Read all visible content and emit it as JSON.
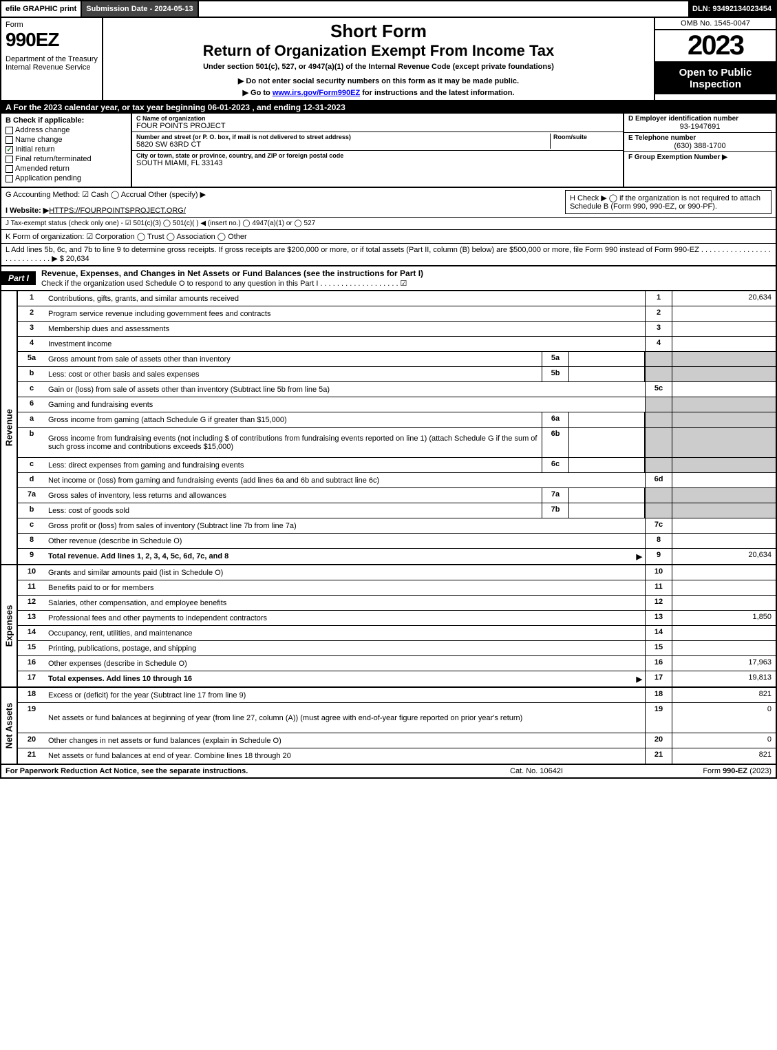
{
  "topbar": {
    "efile": "efile GRAPHIC print",
    "subdate": "Submission Date - 2024-05-13",
    "dln": "DLN: 93492134023454"
  },
  "header": {
    "form_label": "Form",
    "form_num": "990EZ",
    "dept": "Department of the Treasury\nInternal Revenue Service",
    "short": "Short Form",
    "title": "Return of Organization Exempt From Income Tax",
    "sub1": "Under section 501(c), 527, or 4947(a)(1) of the Internal Revenue Code (except private foundations)",
    "sub2": "▶ Do not enter social security numbers on this form as it may be made public.",
    "sub3_pre": "▶ Go to ",
    "sub3_link": "www.irs.gov/Form990EZ",
    "sub3_post": " for instructions and the latest information.",
    "omb": "OMB No. 1545-0047",
    "year": "2023",
    "inspect": "Open to Public Inspection"
  },
  "row_a": "A  For the 2023 calendar year, or tax year beginning 06-01-2023 , and ending 12-31-2023",
  "col_b": {
    "hdr": "B  Check if applicable:",
    "items": [
      "Address change",
      "Name change",
      "Initial return",
      "Final return/terminated",
      "Amended return",
      "Application pending"
    ],
    "checked": 2
  },
  "col_c": {
    "name_lbl": "C Name of organization",
    "name_val": "FOUR POINTS PROJECT",
    "addr_lbl": "Number and street (or P. O. box, if mail is not delivered to street address)",
    "room_lbl": "Room/suite",
    "addr_val": "5820 SW 63RD CT",
    "city_lbl": "City or town, state or province, country, and ZIP or foreign postal code",
    "city_val": "SOUTH MIAMI, FL  33143"
  },
  "col_d": {
    "d_lbl": "D Employer identification number",
    "d_val": "93-1947691",
    "e_lbl": "E Telephone number",
    "e_val": "(630) 388-1700",
    "f_lbl": "F Group Exemption Number  ▶"
  },
  "g": "G Accounting Method:   ☑ Cash  ◯ Accrual  Other (specify) ▶",
  "h": "H  Check ▶  ◯  if the organization is not required to attach Schedule B (Form 990, 990-EZ, or 990-PF).",
  "i_lbl": "I Website: ▶",
  "i_val": "HTTPS://FOURPOINTSPROJECT.ORG/",
  "j": "J Tax-exempt status (check only one) -  ☑ 501(c)(3) ◯ 501(c)(  ) ◀ (insert no.) ◯ 4947(a)(1) or ◯ 527",
  "k": "K Form of organization:   ☑ Corporation  ◯ Trust  ◯ Association  ◯ Other",
  "l": "L Add lines 5b, 6c, and 7b to line 9 to determine gross receipts. If gross receipts are $200,000 or more, or if total assets (Part II, column (B) below) are $500,000 or more, file Form 990 instead of Form 990-EZ  .  .  .  .  .  .  .  .  .  .  .  .  .  .  .  .  .  .  .  .  .  .  .  .  .  .  .  .  ▶ $ 20,634",
  "part1": {
    "badge": "Part I",
    "title": "Revenue, Expenses, and Changes in Net Assets or Fund Balances (see the instructions for Part I)",
    "check": "Check if the organization used Schedule O to respond to any question in this Part I .  .  .  .  .  .  .  .  .  .  .  .  .  .  .  .  .  .  .    ☑"
  },
  "revenue_label": "Revenue",
  "expenses_label": "Expenses",
  "netassets_label": "Net Assets",
  "lines": {
    "rev": [
      {
        "n": "1",
        "d": "Contributions, gifts, grants, and similar amounts received",
        "rn": "1",
        "rv": "20,634"
      },
      {
        "n": "2",
        "d": "Program service revenue including government fees and contracts",
        "rn": "2",
        "rv": ""
      },
      {
        "n": "3",
        "d": "Membership dues and assessments",
        "rn": "3",
        "rv": ""
      },
      {
        "n": "4",
        "d": "Investment income",
        "rn": "4",
        "rv": ""
      },
      {
        "n": "5a",
        "d": "Gross amount from sale of assets other than inventory",
        "mn": "5a",
        "shade": true
      },
      {
        "n": "b",
        "d": "Less: cost or other basis and sales expenses",
        "mn": "5b",
        "shade": true
      },
      {
        "n": "c",
        "d": "Gain or (loss) from sale of assets other than inventory (Subtract line 5b from line 5a)",
        "rn": "5c",
        "rv": ""
      },
      {
        "n": "6",
        "d": "Gaming and fundraising events",
        "shade_right": true
      },
      {
        "n": "a",
        "d": "Gross income from gaming (attach Schedule G if greater than $15,000)",
        "mn": "6a",
        "shade": true
      },
      {
        "n": "b",
        "d": "Gross income from fundraising events (not including $                     of contributions from fundraising events reported on line 1) (attach Schedule G if the sum of such gross income and contributions exceeds $15,000)",
        "mn": "6b",
        "shade": true,
        "tall": true
      },
      {
        "n": "c",
        "d": "Less: direct expenses from gaming and fundraising events",
        "mn": "6c",
        "shade": true
      },
      {
        "n": "d",
        "d": "Net income or (loss) from gaming and fundraising events (add lines 6a and 6b and subtract line 6c)",
        "rn": "6d",
        "rv": ""
      },
      {
        "n": "7a",
        "d": "Gross sales of inventory, less returns and allowances",
        "mn": "7a",
        "shade": true
      },
      {
        "n": "b",
        "d": "Less: cost of goods sold",
        "mn": "7b",
        "shade": true
      },
      {
        "n": "c",
        "d": "Gross profit or (loss) from sales of inventory (Subtract line 7b from line 7a)",
        "rn": "7c",
        "rv": ""
      },
      {
        "n": "8",
        "d": "Other revenue (describe in Schedule O)",
        "rn": "8",
        "rv": ""
      },
      {
        "n": "9",
        "d": "Total revenue. Add lines 1, 2, 3, 4, 5c, 6d, 7c, and 8",
        "rn": "9",
        "rv": "20,634",
        "bold": true,
        "arrow": true
      }
    ],
    "exp": [
      {
        "n": "10",
        "d": "Grants and similar amounts paid (list in Schedule O)",
        "rn": "10",
        "rv": ""
      },
      {
        "n": "11",
        "d": "Benefits paid to or for members",
        "rn": "11",
        "rv": ""
      },
      {
        "n": "12",
        "d": "Salaries, other compensation, and employee benefits",
        "rn": "12",
        "rv": ""
      },
      {
        "n": "13",
        "d": "Professional fees and other payments to independent contractors",
        "rn": "13",
        "rv": "1,850"
      },
      {
        "n": "14",
        "d": "Occupancy, rent, utilities, and maintenance",
        "rn": "14",
        "rv": ""
      },
      {
        "n": "15",
        "d": "Printing, publications, postage, and shipping",
        "rn": "15",
        "rv": ""
      },
      {
        "n": "16",
        "d": "Other expenses (describe in Schedule O)",
        "rn": "16",
        "rv": "17,963"
      },
      {
        "n": "17",
        "d": "Total expenses. Add lines 10 through 16",
        "rn": "17",
        "rv": "19,813",
        "bold": true,
        "arrow": true
      }
    ],
    "net": [
      {
        "n": "18",
        "d": "Excess or (deficit) for the year (Subtract line 17 from line 9)",
        "rn": "18",
        "rv": "821"
      },
      {
        "n": "19",
        "d": "Net assets or fund balances at beginning of year (from line 27, column (A)) (must agree with end-of-year figure reported on prior year's return)",
        "rn": "19",
        "rv": "0",
        "tall": true
      },
      {
        "n": "20",
        "d": "Other changes in net assets or fund balances (explain in Schedule O)",
        "rn": "20",
        "rv": "0"
      },
      {
        "n": "21",
        "d": "Net assets or fund balances at end of year. Combine lines 18 through 20",
        "rn": "21",
        "rv": "821"
      }
    ]
  },
  "footer": {
    "left": "For Paperwork Reduction Act Notice, see the separate instructions.",
    "mid": "Cat. No. 10642I",
    "right": "Form 990-EZ (2023)"
  }
}
